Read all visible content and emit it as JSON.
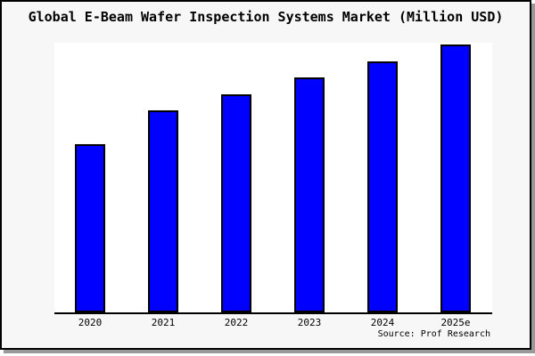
{
  "chart_data": {
    "type": "bar",
    "title": "Global E-Beam Wafer Inspection Systems Market (Million USD)",
    "categories": [
      "2020",
      "2021",
      "2022",
      "2023",
      "2024",
      "2025e"
    ],
    "values": [
      189,
      227,
      245,
      264,
      282,
      301
    ],
    "xlabel": "",
    "ylabel": "",
    "ylim": [
      0,
      303
    ],
    "grid": false,
    "legend": "none",
    "value_note": "y-axis has no tick labels; values are relative bar heights estimated from pixels (plot max = 303)",
    "source": "Source: Prof Research",
    "colors": {
      "bar_fill": "#0000ff",
      "bar_border": "#000000",
      "axis": "#000000",
      "plot_bg": "#ffffff",
      "canvas_bg": "#f7f7f7",
      "frame_border": "#000000",
      "shadow": "#999999",
      "text": "#000000"
    }
  }
}
